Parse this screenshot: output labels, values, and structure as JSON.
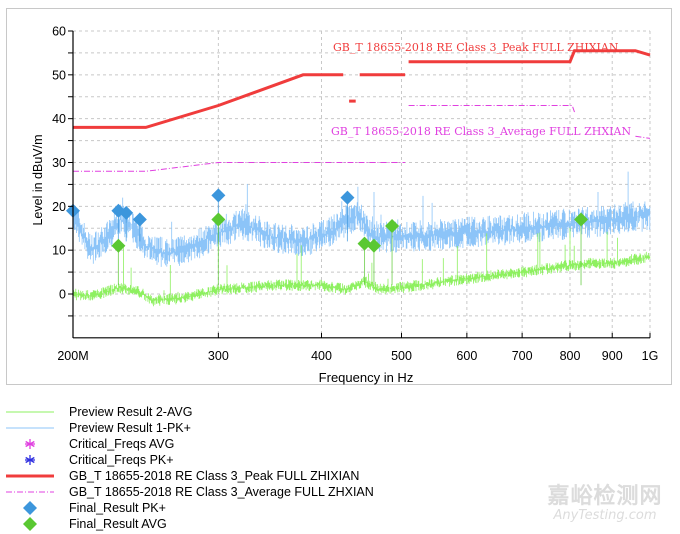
{
  "chart_data": {
    "type": "line",
    "title": "",
    "xlabel": "Frequency in Hz",
    "ylabel": "Level in dBuV/m",
    "xscale": "log",
    "xlim": [
      200,
      1000
    ],
    "ylim": [
      -10,
      60
    ],
    "grid": true,
    "legend_position": "below",
    "x_ticks": [
      {
        "value": 200,
        "label": "200M"
      },
      {
        "value": 300,
        "label": "300"
      },
      {
        "value": 400,
        "label": "400"
      },
      {
        "value": 500,
        "label": "500"
      },
      {
        "value": 600,
        "label": "600"
      },
      {
        "value": 700,
        "label": "700"
      },
      {
        "value": 800,
        "label": "800"
      },
      {
        "value": 900,
        "label": "900"
      },
      {
        "value": 1000,
        "label": "1G"
      }
    ],
    "y_ticks": [
      {
        "value": 60,
        "label": "60"
      },
      {
        "value": 50,
        "label": "50"
      },
      {
        "value": 40,
        "label": "40"
      },
      {
        "value": 30,
        "label": "30"
      },
      {
        "value": 20,
        "label": "20"
      },
      {
        "value": 10,
        "label": "10"
      },
      {
        "value": 0,
        "label": "0"
      }
    ],
    "y_minor_ticks": [
      55,
      45,
      35,
      25,
      15,
      5,
      -5
    ],
    "series": [
      {
        "name": "GB_T 18655-2018 RE Class 3_Peak FULL ZHIXIAN",
        "color": "#f03c3c",
        "style": "solid-thick",
        "segments": [
          [
            [
              200,
              38
            ],
            [
              245,
              38
            ],
            [
              300,
              43
            ],
            [
              380,
              50
            ],
            [
              425,
              50
            ]
          ],
          [
            [
              432,
              44
            ],
            [
              440,
              44
            ]
          ],
          [
            [
              445,
              50
            ],
            [
              505,
              50
            ]
          ],
          [
            [
              510,
              53
            ],
            [
              800,
              53
            ],
            [
              810,
              55.5
            ],
            [
              960,
              55.5
            ],
            [
              1000,
              54.5
            ]
          ]
        ],
        "annotation": "GB_T 18655-2018 RE Class 3_Peak FULL ZHIXIAN"
      },
      {
        "name": "GB_T 18655-2018 RE Class 3_Average FULL ZHXIAN",
        "color": "#e040e0",
        "style": "dash-dot",
        "segments": [
          [
            [
              200,
              28
            ],
            [
              245,
              28
            ],
            [
              300,
              30
            ],
            [
              505,
              30
            ]
          ],
          [
            [
              510,
              43
            ],
            [
              805,
              43
            ],
            [
              810,
              41.5
            ]
          ],
          [
            [
              960,
              36
            ],
            [
              1000,
              35.5
            ]
          ]
        ],
        "annotation": "GB_T 18655-2018 RE Class 3_Average FULL ZHXIAN"
      },
      {
        "name": "Preview Result 1-PK+",
        "color": "#8cc4f8",
        "style": "noise-trace",
        "envelope": [
          [
            200,
            18
          ],
          [
            210,
            10
          ],
          [
            220,
            13
          ],
          [
            228,
            17
          ],
          [
            235,
            16
          ],
          [
            245,
            11
          ],
          [
            260,
            9
          ],
          [
            280,
            11
          ],
          [
            300,
            14
          ],
          [
            320,
            16
          ],
          [
            350,
            13
          ],
          [
            380,
            12
          ],
          [
            410,
            14
          ],
          [
            430,
            17
          ],
          [
            445,
            18
          ],
          [
            460,
            13
          ],
          [
            500,
            13
          ],
          [
            600,
            14
          ],
          [
            700,
            15
          ],
          [
            800,
            16
          ],
          [
            900,
            17
          ],
          [
            1000,
            18
          ]
        ]
      },
      {
        "name": "Preview Result 2-AVG",
        "color": "#8ef060",
        "style": "noise-trace",
        "envelope": [
          [
            200,
            0
          ],
          [
            210,
            -0.5
          ],
          [
            228,
            1.5
          ],
          [
            240,
            0.5
          ],
          [
            250,
            -1.5
          ],
          [
            270,
            -1
          ],
          [
            300,
            1
          ],
          [
            350,
            2
          ],
          [
            400,
            2
          ],
          [
            430,
            1
          ],
          [
            450,
            3
          ],
          [
            470,
            1
          ],
          [
            500,
            1.5
          ],
          [
            600,
            3.5
          ],
          [
            700,
            5
          ],
          [
            800,
            6.5
          ],
          [
            850,
            7
          ],
          [
            900,
            7
          ],
          [
            1000,
            8.5
          ]
        ]
      },
      {
        "name": "Final_Result PK+",
        "color": "#3c96dc",
        "marker": "diamond",
        "points": [
          [
            200,
            19
          ],
          [
            227,
            19
          ],
          [
            232,
            18.5
          ],
          [
            241,
            17
          ],
          [
            300,
            22.5
          ],
          [
            430,
            22
          ]
        ]
      },
      {
        "name": "Final_Result AVG",
        "color": "#5ac832",
        "marker": "diamond",
        "points": [
          [
            227,
            11
          ],
          [
            300,
            17
          ],
          [
            451,
            11.5
          ],
          [
            463,
            11
          ],
          [
            487,
            15.5
          ],
          [
            825,
            17
          ]
        ]
      },
      {
        "name": "Critical_Freqs AVG",
        "color": "#e040e0",
        "marker": "asterisk",
        "points": []
      },
      {
        "name": "Critical_Freqs PK+",
        "color": "#3030e0",
        "marker": "asterisk",
        "points": []
      }
    ]
  },
  "legend": {
    "items": [
      {
        "label": "Preview Result 2-AVG",
        "swatch": "thin-line",
        "color": "#8ef060"
      },
      {
        "label": "Preview Result 1-PK+",
        "swatch": "thin-line",
        "color": "#8cc4f8"
      },
      {
        "label": "Critical_Freqs AVG",
        "swatch": "asterisk",
        "color": "#e040e0"
      },
      {
        "label": "Critical_Freqs PK+",
        "swatch": "asterisk",
        "color": "#3030e0"
      },
      {
        "label": "GB_T 18655-2018 RE Class 3_Peak FULL ZHIXIAN",
        "swatch": "thick-line",
        "color": "#f03c3c"
      },
      {
        "label": "GB_T 18655-2018 RE Class 3_Average FULL ZHXIAN",
        "swatch": "dash-dot",
        "color": "#e040e0"
      },
      {
        "label": "Final_Result PK+",
        "swatch": "diamond",
        "color": "#3c96dc"
      },
      {
        "label": "Final_Result AVG",
        "swatch": "diamond",
        "color": "#5ac832"
      }
    ]
  },
  "watermark": {
    "cn": "嘉峪检测网",
    "en": "AnyTesting.com"
  }
}
